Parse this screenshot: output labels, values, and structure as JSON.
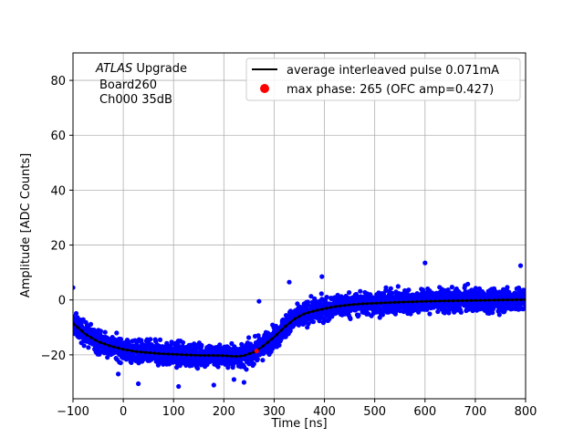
{
  "chart_data": {
    "type": "scatter",
    "title": "",
    "xlabel": "Time [ns]",
    "ylabel": "Amplitude [ADC Counts]",
    "xlim": [
      -100,
      800
    ],
    "ylim": [
      -36,
      90
    ],
    "xticks": [
      -100,
      0,
      100,
      200,
      300,
      400,
      500,
      600,
      700,
      800
    ],
    "yticks": [
      -20,
      0,
      20,
      40,
      60,
      80
    ],
    "grid": true,
    "legend_placement": "top-right",
    "annotation": {
      "italic": "ATLAS",
      "rest": " Upgrade",
      "line2": "Board260",
      "line3": "Ch000 35dB",
      "placement": "top-left"
    },
    "series": [
      {
        "name": "average interleaved pulse 0.071mA",
        "kind": "line",
        "color": "#000000",
        "x": [
          -100,
          -75,
          -50,
          -25,
          0,
          25,
          50,
          75,
          100,
          125,
          150,
          175,
          200,
          225,
          240,
          250,
          265,
          280,
          300,
          320,
          340,
          360,
          380,
          400,
          425,
          450,
          475,
          500,
          550,
          600,
          650,
          700,
          750,
          800
        ],
        "y": [
          -8.5,
          -12.5,
          -15.2,
          -16.8,
          -18.0,
          -18.8,
          -19.2,
          -19.6,
          -19.8,
          -20.0,
          -20.2,
          -20.2,
          -20.3,
          -20.6,
          -20.3,
          -19.6,
          -18.6,
          -16.5,
          -13.5,
          -10.0,
          -7.0,
          -5.0,
          -4.0,
          -3.2,
          -2.3,
          -1.8,
          -1.4,
          -1.2,
          -0.8,
          -0.5,
          -0.3,
          -0.2,
          0.0,
          0.1
        ]
      },
      {
        "name": "",
        "kind": "scatter-cloud",
        "color": "#0000ff",
        "spread": 4.5,
        "outliers": [
          {
            "x": -100,
            "y": 4.5
          },
          {
            "x": 270,
            "y": -0.5
          },
          {
            "x": 330,
            "y": 6.5
          },
          {
            "x": 395,
            "y": 8.5
          },
          {
            "x": 600,
            "y": 13.5
          },
          {
            "x": 790,
            "y": 12.5
          },
          {
            "x": 30,
            "y": -30.5
          },
          {
            "x": 110,
            "y": -31.5
          },
          {
            "x": 180,
            "y": -31.0
          },
          {
            "x": 220,
            "y": -29.0
          },
          {
            "x": -10,
            "y": -27.0
          },
          {
            "x": 240,
            "y": -30.0
          }
        ]
      },
      {
        "name": "max phase: 265 (OFC amp=0.427)",
        "kind": "point",
        "color": "#ff0000",
        "x": [
          265
        ],
        "y": [
          -18.6
        ]
      }
    ]
  }
}
